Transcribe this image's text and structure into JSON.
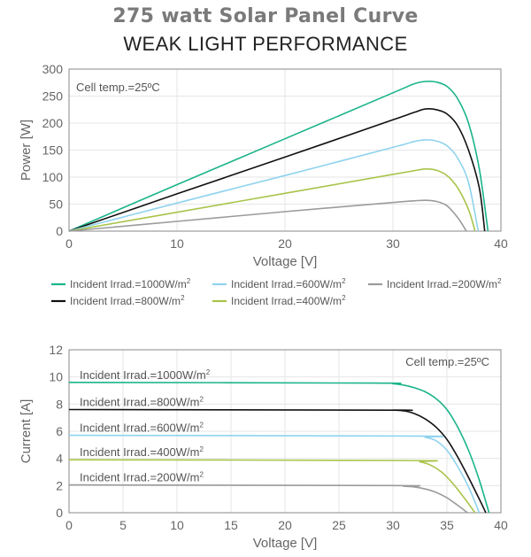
{
  "header": {
    "title": "275 watt Solar Panel Curve",
    "subtitle": "WEAK LIGHT PERFORMANCE"
  },
  "colors": {
    "s1000": "#1ab48a",
    "s800": "#111111",
    "s600": "#8fd3ee",
    "s400": "#a9c44a",
    "s200": "#9b9b9b",
    "axis": "#888888",
    "grid": "#e6e6e6"
  },
  "chart_data": [
    {
      "type": "line",
      "note": "Cell temp.=25ºC",
      "xlabel": "Voltage [V]",
      "ylabel": "Power [W]",
      "xlim": [
        0,
        40
      ],
      "ylim": [
        0,
        300
      ],
      "xticks": [
        0,
        10,
        20,
        30,
        40
      ],
      "yticks": [
        0,
        50,
        100,
        150,
        200,
        250,
        300
      ],
      "legend": "bottom",
      "series": [
        {
          "name": "Incident Irrad.=1000W/m",
          "sup": "2",
          "x": [
            0,
            10,
            20,
            30,
            32,
            33,
            34,
            35,
            36,
            37,
            38,
            38.8
          ],
          "y": [
            0,
            86,
            171,
            256,
            273,
            277,
            276,
            268,
            245,
            200,
            115,
            0
          ]
        },
        {
          "name": "Incident Irrad.=800W/m",
          "sup": "2",
          "x": [
            0,
            10,
            20,
            30,
            32,
            33,
            34,
            35,
            36,
            37,
            38,
            38.5
          ],
          "y": [
            0,
            69,
            137,
            206,
            220,
            226,
            225,
            217,
            195,
            150,
            80,
            0
          ]
        },
        {
          "name": "Incident Irrad.=600W/m",
          "sup": "2",
          "x": [
            0,
            10,
            20,
            30,
            32,
            33,
            34,
            35,
            36,
            37,
            37.9
          ],
          "y": [
            0,
            52,
            103,
            155,
            166,
            169,
            167,
            158,
            135,
            90,
            0
          ]
        },
        {
          "name": "Incident Irrad.=400W/m",
          "sup": "2",
          "x": [
            0,
            10,
            20,
            30,
            32,
            33,
            34,
            35,
            36,
            37,
            37.6
          ],
          "y": [
            0,
            35,
            70,
            105,
            112,
            115,
            113,
            103,
            80,
            40,
            0
          ]
        },
        {
          "name": "Incident Irrad.=200W/m",
          "sup": "2",
          "x": [
            0,
            10,
            20,
            30,
            32,
            33,
            34,
            35,
            36,
            36.8
          ],
          "y": [
            0,
            18,
            36,
            53,
            56,
            57,
            55,
            47,
            25,
            0
          ]
        }
      ]
    },
    {
      "type": "line",
      "note": "Cell temp.=25ºC",
      "xlabel": "Voltage [V]",
      "ylabel": "Current [A]",
      "xlim": [
        0,
        40
      ],
      "ylim": [
        0,
        12
      ],
      "xticks": [
        0,
        5,
        10,
        15,
        20,
        25,
        30,
        35,
        40
      ],
      "yticks": [
        0,
        2,
        4,
        6,
        8,
        10,
        12
      ],
      "series": [
        {
          "name": "Incident Irrad.=1000W/m",
          "sup": "2",
          "x": [
            0,
            28,
            30,
            31,
            32,
            33,
            34,
            35,
            36,
            37,
            38,
            38.9
          ],
          "y": [
            9.6,
            9.55,
            9.5,
            9.4,
            9.2,
            8.9,
            8.4,
            7.6,
            6.3,
            4.6,
            2.4,
            0
          ]
        },
        {
          "name": "Incident Irrad.=800W/m",
          "sup": "2",
          "x": [
            0,
            29.5,
            30,
            31,
            32,
            33,
            34,
            35,
            36,
            37,
            38,
            38.6
          ],
          "y": [
            7.6,
            7.55,
            7.55,
            7.5,
            7.3,
            6.9,
            6.3,
            5.4,
            4.1,
            2.6,
            1.0,
            0
          ]
        },
        {
          "name": "Incident Irrad.=600W/m",
          "sup": "2",
          "x": [
            0,
            32,
            33,
            34,
            35,
            36,
            37,
            38
          ],
          "y": [
            5.7,
            5.65,
            5.55,
            5.3,
            4.6,
            3.4,
            1.9,
            0
          ]
        },
        {
          "name": "Incident Irrad.=400W/m",
          "sup": "2",
          "x": [
            0,
            31.5,
            32.5,
            33.5,
            34.5,
            35.5,
            36.5,
            37.6
          ],
          "y": [
            3.9,
            3.85,
            3.75,
            3.5,
            3.0,
            2.2,
            1.2,
            0
          ]
        },
        {
          "name": "Incident Irrad.=200W/m",
          "sup": "2",
          "x": [
            0,
            30,
            31,
            32,
            33,
            34,
            35,
            36,
            36.9
          ],
          "y": [
            2.05,
            2.0,
            1.95,
            1.9,
            1.75,
            1.5,
            1.1,
            0.55,
            0
          ]
        }
      ]
    }
  ]
}
